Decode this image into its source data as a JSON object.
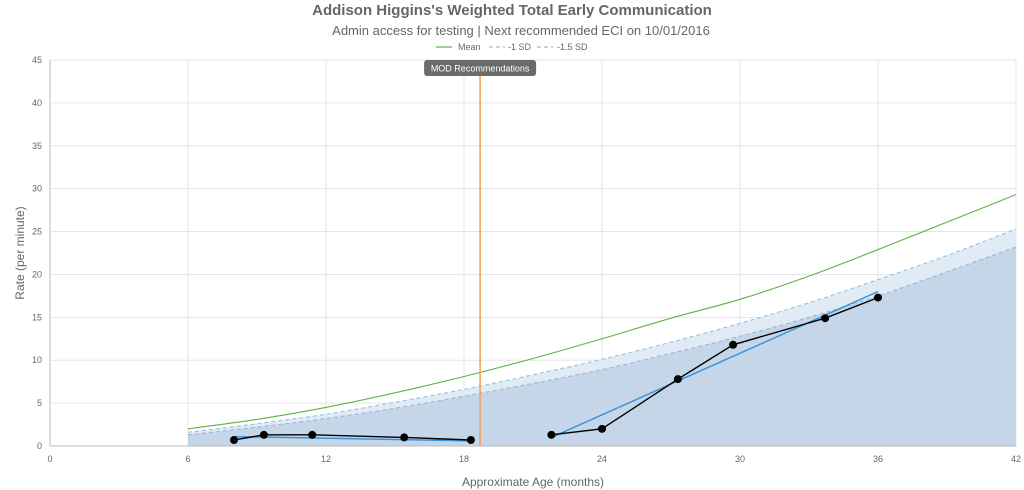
{
  "chart_data": {
    "type": "line",
    "title": "Addison Higgins's Weighted Total Early Communication",
    "subtitle": "Admin access for testing | Next recommended ECI on 10/01/2016",
    "xlabel": "Approximate Age (months)",
    "ylabel": "Rate (per minute)",
    "xlim": [
      0,
      42
    ],
    "ylim": [
      0,
      45
    ],
    "x_ticks": [
      "0",
      "6",
      "12",
      "18",
      "24",
      "30",
      "36",
      "42"
    ],
    "y_ticks": [
      "0",
      "5",
      "10",
      "15",
      "20",
      "25",
      "30",
      "35",
      "40",
      "45"
    ],
    "grid": true,
    "legend_position": "top-center",
    "legend": [
      {
        "label": "Mean",
        "color": "#5cb346",
        "style": "solid"
      },
      {
        "label": "-1 SD",
        "color": "#8ec2e8",
        "style": "dashed"
      },
      {
        "label": "-1.5 SD",
        "color": "#9ab6d4",
        "style": "dashed"
      }
    ],
    "reference_curves": [
      {
        "name": "Mean",
        "color": "#5cb346",
        "dashed": false,
        "fill": null,
        "x": [
          6,
          9,
          12,
          15,
          18,
          21,
          24,
          27,
          30,
          33,
          36,
          39,
          42
        ],
        "y": [
          2.0,
          3.1,
          4.5,
          6.2,
          8.1,
          10.2,
          12.5,
          14.9,
          17.1,
          19.8,
          22.9,
          26.1,
          29.3
        ]
      },
      {
        "name": "-1 SD",
        "color": "#8ec2e8",
        "dashed": true,
        "fill": "#dfeaf6",
        "x": [
          6,
          9,
          12,
          15,
          18,
          21,
          24,
          27,
          30,
          33,
          36,
          39,
          42
        ],
        "y": [
          1.6,
          2.6,
          3.7,
          5.1,
          6.6,
          8.3,
          10.1,
          12.1,
          14.3,
          16.7,
          19.4,
          22.2,
          25.3
        ]
      },
      {
        "name": "-1.5 SD",
        "color": "#9ab6d4",
        "dashed": true,
        "fill": "#c3d5e8",
        "x": [
          6,
          9,
          12,
          15,
          18,
          21,
          24,
          27,
          30,
          33,
          36,
          39,
          42
        ],
        "y": [
          1.3,
          2.2,
          3.2,
          4.4,
          5.8,
          7.3,
          8.9,
          10.8,
          12.8,
          15.0,
          17.5,
          20.3,
          23.2
        ]
      }
    ],
    "series": [
      {
        "color": "#000000",
        "points": true,
        "x": [
          8,
          9.3,
          11.4,
          15.4,
          18.3
        ],
        "y": [
          0.7,
          1.3,
          1.3,
          1.0,
          0.7
        ]
      },
      {
        "color": "#000000",
        "points": true,
        "x": [
          21.8,
          24,
          27.3,
          29.7,
          33.7,
          36
        ],
        "y": [
          1.3,
          2.0,
          7.8,
          11.8,
          14.9,
          17.3
        ]
      }
    ],
    "trend_lines": [
      {
        "color": "#3b94d9",
        "x": [
          8,
          18.3
        ],
        "y": [
          1.1,
          0.6
        ]
      },
      {
        "color": "#3b94d9",
        "x": [
          21.8,
          36
        ],
        "y": [
          1.0,
          18.0
        ]
      }
    ],
    "annotations": [
      {
        "type": "vertical_line",
        "x": 18.7,
        "color": "#f0a050",
        "label": "MOD Recommendations",
        "label_bg": "#6b6b6b"
      }
    ]
  }
}
